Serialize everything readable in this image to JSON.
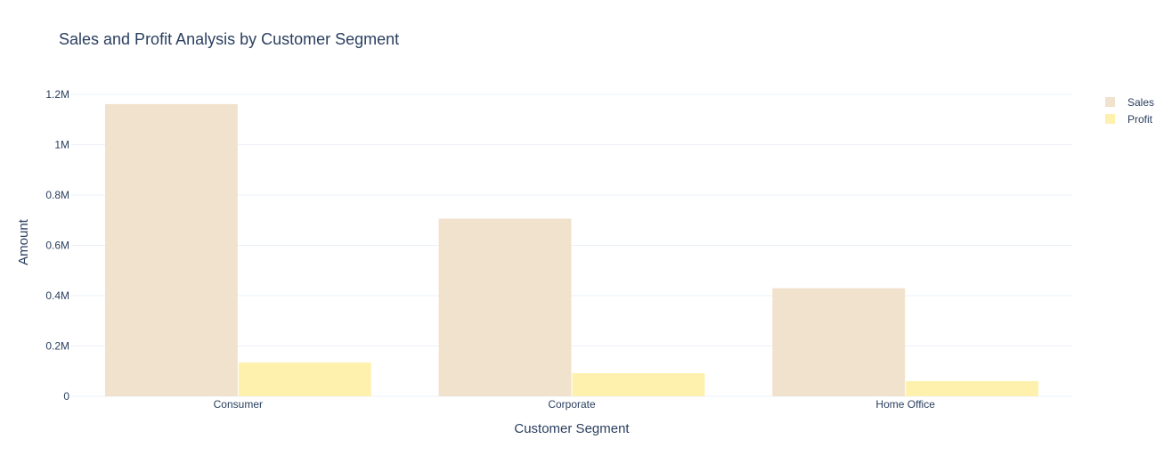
{
  "chart_data": {
    "type": "bar",
    "title": "Sales and Profit Analysis by Customer Segment",
    "xlabel": "Customer Segment",
    "ylabel": "Amount",
    "categories": [
      "Consumer",
      "Corporate",
      "Home Office"
    ],
    "series": [
      {
        "name": "Sales",
        "values": [
          1161401,
          706146,
          429653
        ],
        "color": "#f0e2cc"
      },
      {
        "name": "Profit",
        "values": [
          134119,
          91979,
          60299
        ],
        "color": "#fef1ae"
      }
    ],
    "ylim": [
      0,
      1200000
    ],
    "yticks": [
      {
        "value": 0,
        "label": "0"
      },
      {
        "value": 200000,
        "label": "0.2M"
      },
      {
        "value": 400000,
        "label": "0.4M"
      },
      {
        "value": 600000,
        "label": "0.6M"
      },
      {
        "value": 800000,
        "label": "0.8M"
      },
      {
        "value": 1000000,
        "label": "1M"
      },
      {
        "value": 1200000,
        "label": "1.2M"
      }
    ],
    "grid": true,
    "legend_position": "top-right"
  },
  "colors": {
    "text": "#2a3f5f",
    "grid": "#ebf0f8",
    "axis_line": "#ebf0f8"
  }
}
